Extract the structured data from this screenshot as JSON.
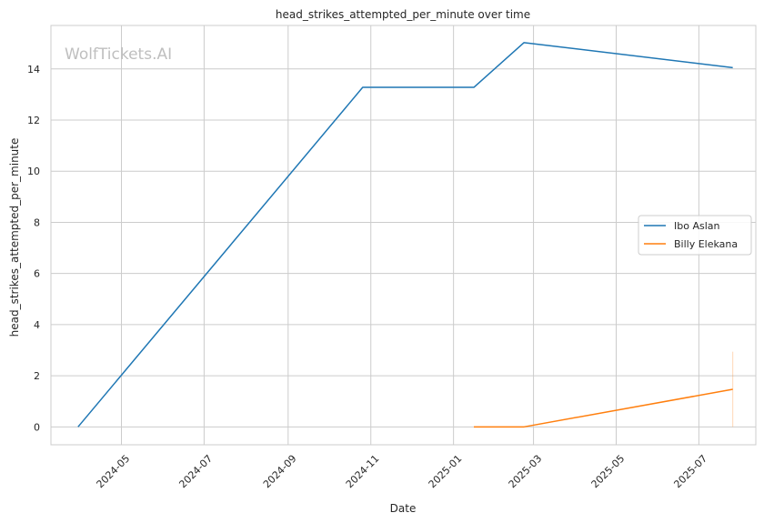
{
  "chart_data": {
    "type": "line",
    "title": "head_strikes_attempted_per_minute over time",
    "xlabel": "Date",
    "ylabel": "head_strikes_attempted_per_minute",
    "watermark": "WolfTickets.AI",
    "x_ticks": [
      "2024-05",
      "2024-07",
      "2024-09",
      "2024-11",
      "2025-01",
      "2025-03",
      "2025-05",
      "2025-07"
    ],
    "y_ticks": [
      0,
      2,
      4,
      6,
      8,
      10,
      12,
      14
    ],
    "xlim": [
      "2024-03-10",
      "2025-08-12"
    ],
    "ylim": [
      -0.7,
      15.7
    ],
    "grid": true,
    "legend_position": "center-right",
    "series": [
      {
        "name": "Ibo Aslan",
        "color": "#1f77b4",
        "x": [
          "2024-03-30",
          "2024-10-26",
          "2025-01-16",
          "2025-02-22",
          "2025-07-26"
        ],
        "y": [
          0,
          13.28,
          13.28,
          15.03,
          14.05
        ]
      },
      {
        "name": "Billy Elekana",
        "color": "#ff7f0e",
        "x": [
          "2025-01-16",
          "2025-02-22",
          "2025-07-26"
        ],
        "y": [
          0,
          0,
          1.47
        ],
        "band": {
          "x": "2025-07-26",
          "low": 0,
          "high": 2.94
        }
      }
    ]
  }
}
